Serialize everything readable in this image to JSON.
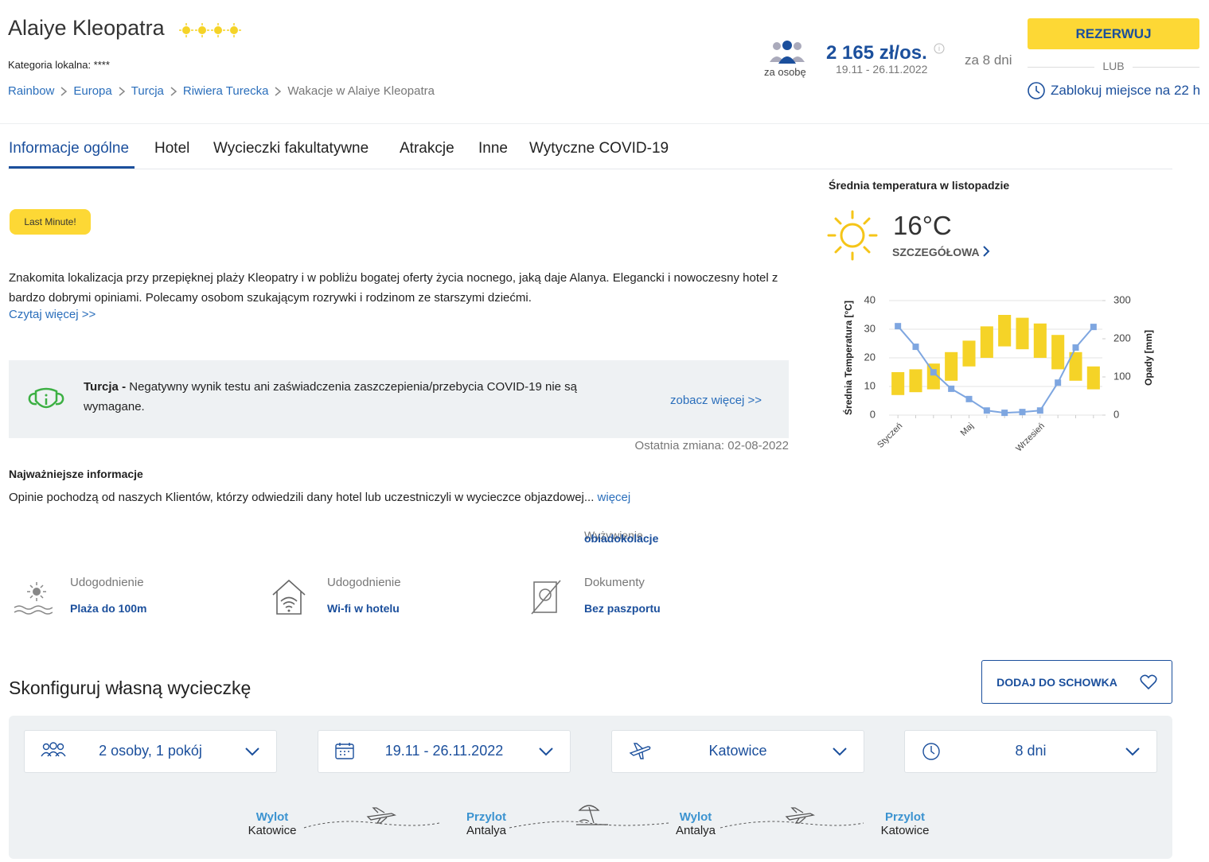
{
  "header": {
    "name": "Alaiye Kleopatra",
    "stars": 4,
    "category": "Kategoria lokalna: ****",
    "breadcrumbs": [
      "Rainbow",
      "Europa",
      "Turcja",
      "Riwiera Turecka",
      "Wakacje w Alaiye Kleopatra"
    ]
  },
  "price": {
    "per_person": "za osobę",
    "amount": "2 165 zł/os.",
    "dates": "19.11 - 26.11.2022",
    "duration": "za 8 dni",
    "book": "REZERWUJ",
    "or": "LUB",
    "lock": "Zablokuj miejsce na 22 h"
  },
  "tabs": [
    "Informacje ogólne",
    "Hotel",
    "Wycieczki fakultatywne",
    "Atrakcje",
    "Inne",
    "Wytyczne COVID-19"
  ],
  "badge": "Last Minute!",
  "description": {
    "text": "Znakomita lokalizacja przy przepięknej plaży Kleopatry i w pobliżu bogatej oferty życia nocnego, jaką daje Alanya. Elegancki i nowoczesny hotel z bardzo dobrymi opiniami. Polecamy osobom szukającym rozrywki i rodzinom ze starszymi dziećmi.",
    "more": "Czytaj więcej >>"
  },
  "covid": {
    "country": "Turcja -",
    "text": "Negatywny wynik testu ani zaświadczenia zaszczepienia/przebycia COVID-19 nie są wymagane.",
    "link": "zobacz więcej >>",
    "changed": "Ostatnia zmiana: 02-08-2022"
  },
  "info": {
    "heading": "Najważniejsze informacje",
    "text": "Opinie pochodzą od naszych Klientów, którzy odwiedzili dany hotel lub uczestniczyli w wycieczce objazdowej...",
    "more": "więcej",
    "board_label": "Wyżywienie",
    "board_value": "obiadokolacje"
  },
  "features": [
    {
      "label": "Udogodnienie",
      "value": "Plaża do 100m"
    },
    {
      "label": "Udogodnienie",
      "value": "Wi-fi w hotelu"
    },
    {
      "label": "Dokumenty",
      "value": "Bez paszportu"
    }
  ],
  "weather": {
    "temperature": "16°C",
    "details": "SZCZEGÓŁOWA"
  },
  "chart_data": {
    "type": "range-bar-line",
    "title": "Średnia temperatura w listopadzie",
    "categories": [
      "Styczeń",
      null,
      null,
      null,
      "Maj",
      null,
      null,
      null,
      "Wrzesień",
      null,
      null,
      null
    ],
    "ylabel": "Średnia Temperatura [°C]",
    "y2label": "Opady [mm]",
    "ylim": [
      0,
      40
    ],
    "yticks": [
      0,
      10,
      20,
      30,
      40
    ],
    "y2lim": [
      0,
      300
    ],
    "y2ticks": [
      0,
      100,
      200,
      300
    ],
    "series": [
      {
        "type": "range",
        "color": "#f5d327",
        "low": [
          7,
          8,
          9,
          12,
          17,
          20,
          24,
          23,
          20,
          16,
          12,
          9
        ],
        "high": [
          15,
          16,
          18,
          22,
          26,
          31,
          35,
          34,
          32,
          28,
          22,
          17
        ]
      },
      {
        "type": "line",
        "axis": "y2",
        "color": "#7ea6e0",
        "values": [
          233,
          179,
          112,
          69,
          42,
          12,
          6,
          8,
          12,
          85,
          177,
          231
        ]
      }
    ]
  },
  "configure": {
    "title": "Skonfiguruj własną wycieczkę",
    "save": "DODAJ DO SCHOWKA",
    "selects": [
      "2 osoby, 1 pokój",
      "19.11 - 26.11.2022",
      "Katowice",
      "8 dni"
    ],
    "route": [
      {
        "label": "Wylot",
        "city": "Katowice"
      },
      {
        "label": "Przylot",
        "city": "Antalya"
      },
      {
        "label": "Wylot",
        "city": "Antalya"
      },
      {
        "label": "Przylot",
        "city": "Katowice"
      }
    ]
  }
}
